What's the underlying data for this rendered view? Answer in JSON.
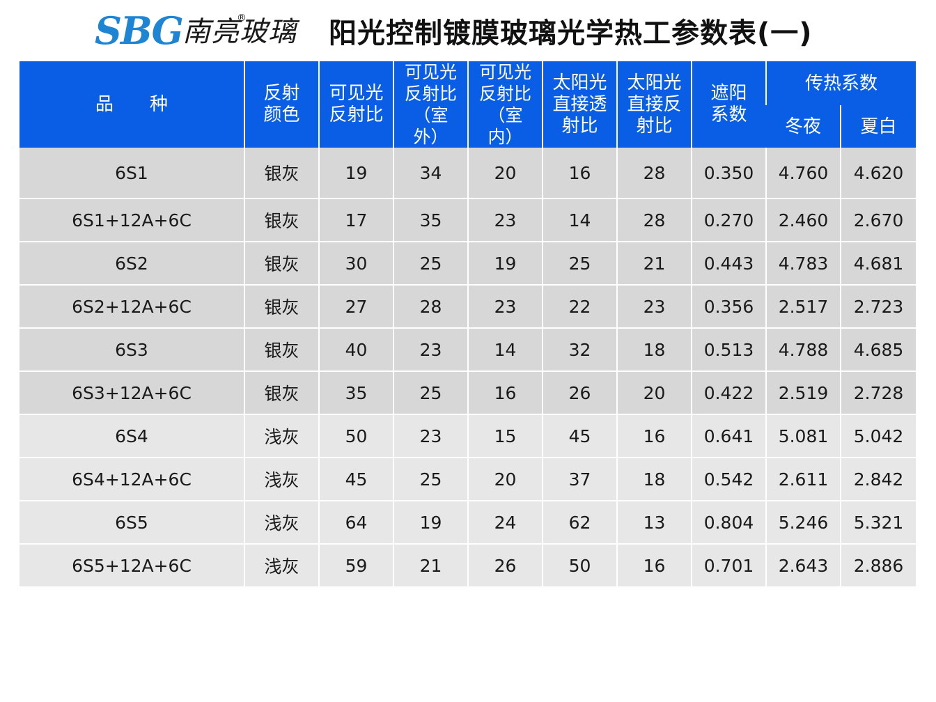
{
  "logo": {
    "brand": "SBG",
    "chinese": "南亮玻璃",
    "reg": "®"
  },
  "title": "阳光控制镀膜玻璃光学热工参数表(一)",
  "table": {
    "headers": {
      "product": "品　　种",
      "color": "反射颜色",
      "vis_refl": "可见光反射比",
      "vis_refl_out": "可见光反射比（室外）",
      "vis_refl_in": "可见光反射比（室内）",
      "solar_trans": "太阳光直接透射比",
      "solar_refl": "太阳光直接反射比",
      "shading": "遮阳系数",
      "u_value": "传热系数",
      "winter": "冬夜",
      "summer": "夏白"
    },
    "rows": [
      {
        "product": "6S1",
        "color": "银灰",
        "vis_refl": "19",
        "vis_out": "34",
        "vis_in": "20",
        "solar_trans": "16",
        "solar_refl": "28",
        "shading": "0.350",
        "winter": "4.760",
        "summer": "4.620"
      },
      {
        "product": "6S1+12A+6C",
        "color": "银灰",
        "vis_refl": "17",
        "vis_out": "35",
        "vis_in": "23",
        "solar_trans": "14",
        "solar_refl": "28",
        "shading": "0.270",
        "winter": "2.460",
        "summer": "2.670"
      },
      {
        "product": "6S2",
        "color": "银灰",
        "vis_refl": "30",
        "vis_out": "25",
        "vis_in": "19",
        "solar_trans": "25",
        "solar_refl": "21",
        "shading": "0.443",
        "winter": "4.783",
        "summer": "4.681"
      },
      {
        "product": "6S2+12A+6C",
        "color": "银灰",
        "vis_refl": "27",
        "vis_out": "28",
        "vis_in": "23",
        "solar_trans": "22",
        "solar_refl": "23",
        "shading": "0.356",
        "winter": "2.517",
        "summer": "2.723"
      },
      {
        "product": "6S3",
        "color": "银灰",
        "vis_refl": "40",
        "vis_out": "23",
        "vis_in": "14",
        "solar_trans": "32",
        "solar_refl": "18",
        "shading": "0.513",
        "winter": "4.788",
        "summer": "4.685"
      },
      {
        "product": "6S3+12A+6C",
        "color": "银灰",
        "vis_refl": "35",
        "vis_out": "25",
        "vis_in": "16",
        "solar_trans": "26",
        "solar_refl": "20",
        "shading": "0.422",
        "winter": "2.519",
        "summer": "2.728"
      },
      {
        "product": "6S4",
        "color": "浅灰",
        "vis_refl": "50",
        "vis_out": "23",
        "vis_in": "15",
        "solar_trans": "45",
        "solar_refl": "16",
        "shading": "0.641",
        "winter": "5.081",
        "summer": "5.042"
      },
      {
        "product": "6S4+12A+6C",
        "color": "浅灰",
        "vis_refl": "45",
        "vis_out": "25",
        "vis_in": "20",
        "solar_trans": "37",
        "solar_refl": "18",
        "shading": "0.542",
        "winter": "2.611",
        "summer": "2.842"
      },
      {
        "product": "6S5",
        "color": "浅灰",
        "vis_refl": "64",
        "vis_out": "19",
        "vis_in": "24",
        "solar_trans": "62",
        "solar_refl": "13",
        "shading": "0.804",
        "winter": "5.246",
        "summer": "5.321"
      },
      {
        "product": "6S5+12A+6C",
        "color": "浅灰",
        "vis_refl": "59",
        "vis_out": "21",
        "vis_in": "26",
        "solar_trans": "50",
        "solar_refl": "16",
        "shading": "0.701",
        "winter": "2.643",
        "summer": "2.886"
      }
    ]
  },
  "colors": {
    "header_bg": "#0a5ee6",
    "row_dark": "#d7d7d7",
    "row_light": "#e7e7e7",
    "logo_blue": "#1e84d4"
  }
}
